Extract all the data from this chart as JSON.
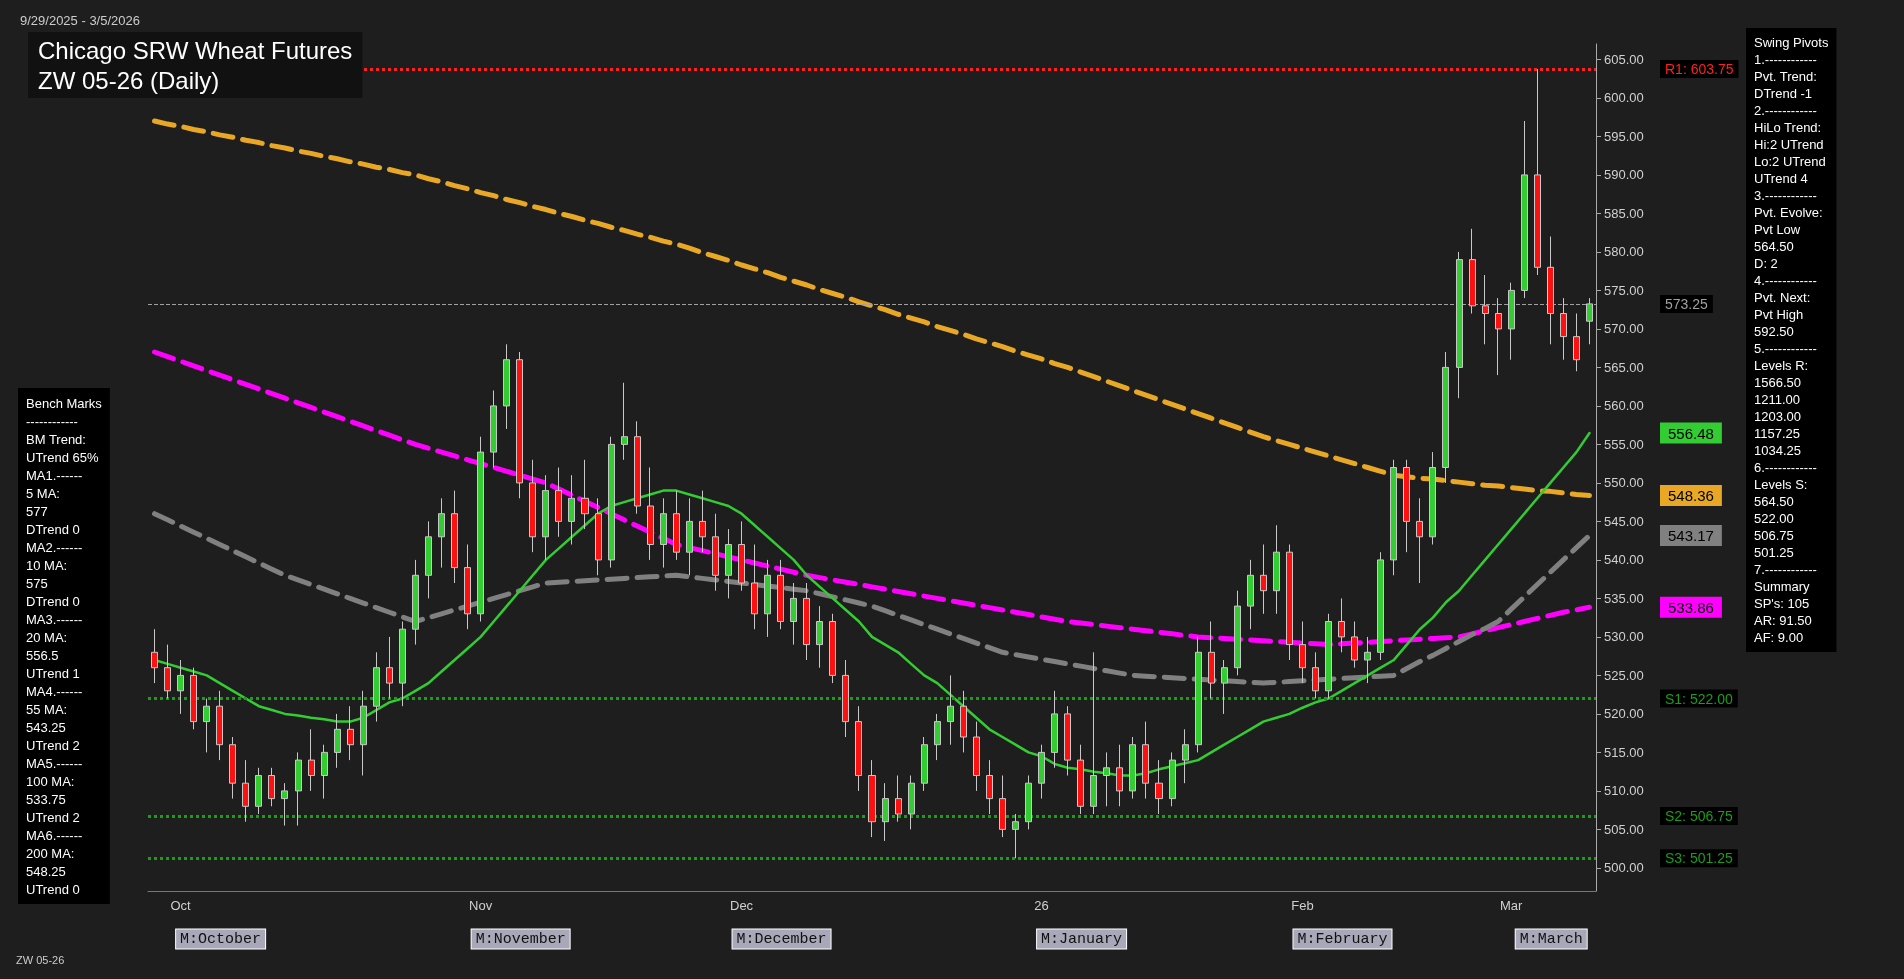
{
  "chart_data": {
    "type": "candlestick",
    "title": "Chicago SRW Wheat Futures",
    "subtitle": "ZW 05-26 (Daily)",
    "categories": [
      null,
      null,
      "Oct",
      null,
      null,
      null,
      null,
      null,
      null,
      null,
      null,
      null,
      null,
      null,
      null,
      null,
      null,
      null,
      null,
      null,
      null,
      null,
      null,
      null,
      null,
      "Nov",
      null,
      null,
      null,
      null,
      null,
      null,
      null,
      null,
      null,
      null,
      null,
      null,
      null,
      null,
      null,
      null,
      null,
      null,
      null,
      "Dec",
      null,
      null,
      null,
      null,
      null,
      null,
      null,
      null,
      null,
      null,
      null,
      null,
      null,
      null,
      null,
      null,
      null,
      null,
      null,
      null,
      null,
      null,
      "26",
      null,
      null,
      null,
      null,
      null,
      null,
      null,
      null,
      null,
      null,
      null,
      null,
      null,
      null,
      null,
      null,
      null,
      null,
      null,
      "Feb",
      null,
      null,
      null,
      null,
      null,
      null,
      null,
      null,
      null,
      null,
      null,
      null,
      null,
      null,
      null,
      "Mar",
      null,
      null,
      null,
      null,
      null,
      null
    ],
    "ohlc": [
      [
        528,
        531,
        524,
        526
      ],
      [
        526,
        529,
        522,
        523
      ],
      [
        523,
        527,
        520,
        525
      ],
      [
        525,
        526,
        518,
        519
      ],
      [
        519,
        522,
        515,
        521
      ],
      [
        521,
        523,
        514,
        516
      ],
      [
        516,
        517,
        509,
        511
      ],
      [
        511,
        514,
        506,
        508
      ],
      [
        508,
        513,
        507,
        512
      ],
      [
        512,
        513,
        508,
        509
      ],
      [
        509,
        511,
        505.5,
        510
      ],
      [
        510,
        515,
        505.5,
        514
      ],
      [
        514,
        518,
        510,
        512
      ],
      [
        512,
        516,
        509,
        515
      ],
      [
        515,
        520,
        513,
        518
      ],
      [
        518,
        521,
        514,
        516
      ],
      [
        516,
        523,
        512,
        521
      ],
      [
        521,
        528,
        519,
        526
      ],
      [
        526,
        530,
        522,
        524
      ],
      [
        524,
        532,
        521,
        531
      ],
      [
        531,
        540,
        529,
        538
      ],
      [
        538,
        545,
        535,
        543
      ],
      [
        543,
        548,
        539,
        546
      ],
      [
        546,
        549,
        537,
        539
      ],
      [
        539,
        542,
        531,
        533
      ],
      [
        533,
        556,
        532,
        554
      ],
      [
        554,
        562,
        552,
        560
      ],
      [
        560,
        568,
        557,
        566
      ],
      [
        566,
        567,
        548,
        550
      ],
      [
        550,
        553,
        541,
        543
      ],
      [
        543,
        551,
        540,
        549
      ],
      [
        549,
        552,
        543,
        545
      ],
      [
        545,
        551,
        542,
        548
      ],
      [
        548,
        553,
        544,
        546
      ],
      [
        546,
        548,
        538,
        540
      ],
      [
        540,
        556,
        539,
        555
      ],
      [
        555,
        563,
        553,
        556
      ],
      [
        556,
        558,
        546,
        547
      ],
      [
        547,
        552,
        540,
        542
      ],
      [
        542,
        548,
        539,
        546
      ],
      [
        546,
        549,
        540,
        541
      ],
      [
        541,
        548,
        538,
        545
      ],
      [
        545,
        549,
        541,
        543
      ],
      [
        543,
        546,
        536,
        538
      ],
      [
        538,
        544,
        535,
        542
      ],
      [
        542,
        545,
        536,
        537
      ],
      [
        537,
        542,
        531,
        533
      ],
      [
        533,
        540,
        530,
        538
      ],
      [
        538,
        540,
        531,
        532
      ],
      [
        532,
        537,
        529,
        535
      ],
      [
        535,
        537,
        527,
        529
      ],
      [
        529,
        534,
        526,
        532
      ],
      [
        532,
        533,
        524,
        525
      ],
      [
        525,
        527,
        517,
        519
      ],
      [
        519,
        521,
        510,
        512
      ],
      [
        512,
        514,
        504,
        506
      ],
      [
        506,
        511,
        503.5,
        509
      ],
      [
        509,
        512,
        506,
        507
      ],
      [
        507,
        512,
        505,
        511
      ],
      [
        511,
        517,
        510,
        516
      ],
      [
        516,
        520,
        514,
        519
      ],
      [
        519,
        525,
        516,
        521
      ],
      [
        521,
        523,
        515,
        517
      ],
      [
        517,
        519,
        510,
        512
      ],
      [
        512,
        514,
        507,
        509
      ],
      [
        509,
        512,
        504,
        505
      ],
      [
        505,
        507,
        501.25,
        506
      ],
      [
        506,
        512,
        505,
        511
      ],
      [
        511,
        516,
        509,
        515
      ],
      [
        515,
        523,
        513,
        520
      ],
      [
        520,
        521,
        512,
        514
      ],
      [
        514,
        516,
        507,
        508
      ],
      [
        508,
        528,
        507,
        512
      ],
      [
        512,
        515,
        508,
        513
      ],
      [
        513,
        516,
        508,
        510
      ],
      [
        510,
        517,
        509,
        516
      ],
      [
        516,
        519,
        509,
        511
      ],
      [
        511,
        514,
        507,
        509
      ],
      [
        509,
        515,
        508,
        514
      ],
      [
        514,
        518,
        511,
        516
      ],
      [
        516,
        530,
        515,
        528
      ],
      [
        528,
        532,
        522,
        524
      ],
      [
        524,
        527,
        520,
        526
      ],
      [
        526,
        536,
        525,
        534
      ],
      [
        534,
        540,
        531,
        538
      ],
      [
        538,
        542,
        533,
        536
      ],
      [
        536,
        544.5,
        533,
        541
      ],
      [
        541,
        542,
        527,
        529
      ],
      [
        529,
        532,
        524,
        526
      ],
      [
        526,
        528,
        522,
        523
      ],
      [
        523,
        533,
        522,
        532
      ],
      [
        532,
        535,
        528,
        530
      ],
      [
        530,
        532,
        526,
        527
      ],
      [
        527,
        530,
        524,
        528
      ],
      [
        528,
        541,
        527,
        540
      ],
      [
        540,
        553,
        538,
        552
      ],
      [
        552,
        553,
        541,
        545
      ],
      [
        545,
        548,
        537,
        543
      ],
      [
        543,
        554,
        542,
        552
      ],
      [
        552,
        567,
        550,
        565
      ],
      [
        565,
        580,
        561,
        579
      ],
      [
        579,
        583,
        572,
        573
      ],
      [
        573,
        577,
        568,
        572
      ],
      [
        572,
        574,
        564,
        570
      ],
      [
        570,
        576,
        566,
        575
      ],
      [
        575,
        597,
        574,
        590
      ],
      [
        590,
        603.75,
        577,
        578
      ],
      [
        578,
        582,
        568,
        572
      ],
      [
        572,
        574,
        566,
        569
      ],
      [
        569,
        572,
        564.5,
        566
      ],
      [
        571,
        574,
        568,
        573.25
      ]
    ],
    "series": [
      {
        "type": "line",
        "color": "#e8a825",
        "line_style": "dashed",
        "values": [
          597,
          596.6,
          596.3,
          595.9,
          595.6,
          595.2,
          594.9,
          594.5,
          594.2,
          593.8,
          593.5,
          593.1,
          592.8,
          592.4,
          592.1,
          591.7,
          591.4,
          591,
          590.7,
          590.3,
          590,
          589.5,
          589.1,
          588.6,
          588.2,
          587.7,
          587.3,
          586.8,
          586.4,
          585.9,
          585.5,
          585,
          584.6,
          584.1,
          583.7,
          583.2,
          582.8,
          582.3,
          581.9,
          581.4,
          581,
          580.5,
          579.9,
          579.4,
          578.9,
          578.3,
          577.8,
          577.3,
          576.7,
          576.2,
          575.7,
          575.1,
          574.6,
          574.1,
          573.5,
          573,
          572.5,
          571.9,
          571.4,
          570.9,
          570.3,
          569.8,
          569.3,
          568.7,
          568.2,
          567.7,
          567.1,
          566.6,
          566.1,
          565.5,
          565,
          564.4,
          563.8,
          563.2,
          562.6,
          562,
          561.4,
          560.8,
          560.2,
          559.6,
          559,
          558.4,
          557.8,
          557.2,
          556.6,
          556,
          555.5,
          555,
          554.5,
          554,
          553.5,
          553,
          552.5,
          552,
          551.5,
          551,
          550.8,
          550.6,
          550.5,
          550.3,
          550.1,
          549.9,
          549.7,
          549.6,
          549.4,
          549.2,
          549,
          548.9,
          548.7,
          548.5,
          548.36
        ]
      },
      {
        "type": "line",
        "color": "#ff00ff",
        "line_style": "dashed",
        "values": [
          567,
          566.4,
          565.8,
          565.2,
          564.6,
          564,
          563.4,
          562.8,
          562.2,
          561.6,
          561,
          560.4,
          559.8,
          559.2,
          558.6,
          558,
          557.4,
          556.8,
          556.2,
          555.6,
          555,
          554.5,
          554,
          553.5,
          553,
          552.5,
          552,
          551.5,
          551,
          550.5,
          550,
          549.2,
          548.4,
          547.6,
          546.8,
          546,
          545.2,
          544.4,
          543.6,
          542.8,
          542,
          541.6,
          541.2,
          540.8,
          540.4,
          540,
          539.6,
          539.2,
          538.8,
          538.4,
          538,
          537.7,
          537.4,
          537.1,
          536.8,
          536.5,
          536.2,
          535.9,
          535.6,
          535.3,
          535,
          534.7,
          534.4,
          534.1,
          533.8,
          533.5,
          533.2,
          532.9,
          532.6,
          532.3,
          532,
          531.8,
          531.6,
          531.4,
          531.2,
          531,
          530.8,
          530.6,
          530.4,
          530.2,
          530,
          529.9,
          529.8,
          529.7,
          529.6,
          529.5,
          529.4,
          529.3,
          529.2,
          529.1,
          529,
          529.1,
          529.2,
          529.3,
          529.4,
          529.5,
          529.6,
          529.7,
          529.8,
          529.9,
          530,
          530.4,
          530.8,
          531.2,
          531.6,
          532,
          532.4,
          532.8,
          533.2,
          533.5,
          533.86
        ]
      },
      {
        "type": "line",
        "color": "#808080",
        "line_style": "dashed",
        "values": [
          546,
          545.2,
          544.4,
          543.6,
          542.8,
          542,
          541.2,
          540.4,
          539.6,
          538.8,
          538,
          537.4,
          536.8,
          536.2,
          535.6,
          535,
          534.4,
          533.8,
          533.2,
          532.6,
          532,
          532.5,
          533,
          533.5,
          534,
          534.5,
          535,
          535.5,
          536,
          536.5,
          537,
          537.1,
          537.2,
          537.3,
          537.4,
          537.5,
          537.6,
          537.7,
          537.8,
          537.9,
          538,
          537.8,
          537.6,
          537.4,
          537.2,
          537,
          536.8,
          536.6,
          536.4,
          536.2,
          536,
          535.6,
          535.2,
          534.8,
          534.4,
          534,
          533.4,
          532.8,
          532.2,
          531.6,
          531,
          530.4,
          529.8,
          529.2,
          528.6,
          528,
          527.7,
          527.4,
          527.1,
          526.8,
          526.5,
          526.2,
          525.9,
          525.6,
          525.3,
          525,
          524.9,
          524.8,
          524.7,
          524.6,
          524.5,
          524.4,
          524.3,
          524.2,
          524.1,
          524,
          524.1,
          524.2,
          524.3,
          524.4,
          524.5,
          524.6,
          524.7,
          524.8,
          524.9,
          525,
          525.9,
          526.8,
          527.6,
          528.5,
          529.4,
          530.3,
          531.1,
          532,
          533.6,
          535.2,
          536.8,
          538.4,
          540,
          541.6,
          543.17
        ]
      },
      {
        "type": "line",
        "color": "#33cc33",
        "line_style": "solid",
        "values": [
          527,
          526.5,
          526,
          525.5,
          525,
          524,
          523,
          522,
          521,
          520.5,
          520,
          519.8,
          519.5,
          519.3,
          519,
          519,
          519.5,
          520.5,
          521.5,
          522,
          523,
          524,
          525.5,
          527,
          528.5,
          530,
          532,
          534,
          536,
          538,
          540,
          541.5,
          543,
          544.5,
          546,
          547,
          547.5,
          548,
          548.5,
          549,
          549,
          548.5,
          548,
          547.5,
          547,
          546,
          544.5,
          543,
          541.5,
          540,
          538,
          536.5,
          535,
          533.5,
          532,
          530,
          529,
          528,
          526.5,
          525,
          524,
          522.5,
          521,
          519.5,
          518,
          517,
          516,
          515,
          514.5,
          513.5,
          513,
          512.8,
          512.5,
          512.3,
          512,
          512,
          512.3,
          512.8,
          513.2,
          513.6,
          514,
          515,
          516,
          517,
          518,
          519,
          519.5,
          520,
          520.8,
          521.5,
          522,
          523,
          524,
          525,
          526,
          527,
          529,
          531,
          532.5,
          534.5,
          536,
          538,
          540,
          542,
          544,
          546,
          548,
          550,
          552,
          554,
          556.48
        ]
      }
    ],
    "ylim": [
      497,
      607
    ],
    "yticks": [
      {
        "value": 500,
        "label": "500.00"
      },
      {
        "value": 505,
        "label": "505.00"
      },
      {
        "value": 510,
        "label": "510.00"
      },
      {
        "value": 515,
        "label": "515.00"
      },
      {
        "value": 520,
        "label": "520.00"
      },
      {
        "value": 525,
        "label": "525.00"
      },
      {
        "value": 530,
        "label": "530.00"
      },
      {
        "value": 535,
        "label": "535.00"
      },
      {
        "value": 540,
        "label": "540.00"
      },
      {
        "value": 545,
        "label": "545.00"
      },
      {
        "value": 550,
        "label": "550.00"
      },
      {
        "value": 555,
        "label": "555.00"
      },
      {
        "value": 560,
        "label": "560.00"
      },
      {
        "value": 565,
        "label": "565.00"
      },
      {
        "value": 570,
        "label": "570.00"
      },
      {
        "value": 575,
        "label": "575.00"
      },
      {
        "value": 580,
        "label": "580.00"
      },
      {
        "value": 585,
        "label": "585.00"
      },
      {
        "value": 590,
        "label": "590.00"
      },
      {
        "value": 595,
        "label": "595.00"
      },
      {
        "value": 600,
        "label": "600.00"
      },
      {
        "value": 605,
        "label": "605.00"
      }
    ],
    "ref_lines": [
      {
        "axis": "y",
        "value": 603.75,
        "label": "R1: 603.75",
        "color": "#ff2020",
        "line_style": "dotted"
      },
      {
        "axis": "y",
        "value": 573.25,
        "label": "573.25",
        "color": "#a0a0a0",
        "line_style": "dashed"
      },
      {
        "axis": "y",
        "value": 522,
        "label": "S1: 522.00",
        "color": "#1a9e1a",
        "line_style": "dotted"
      },
      {
        "axis": "y",
        "value": 506.75,
        "label": "S2: 506.75",
        "color": "#1a9e1a",
        "line_style": "dotted"
      },
      {
        "axis": "y",
        "value": 501.25,
        "label": "S3: 501.25",
        "color": "#1a9e1a",
        "line_style": "dotted"
      }
    ],
    "annotations": [
      "9/29/2025 - 3/5/2026",
      "Bench Marks\n------------\nBM Trend:\nUTrend 65%\nMA1.------\n5 MA:\n577\nDTrend 0\nMA2.------\n10 MA:\n575\nDTrend 0\nMA3.------\n20 MA:\n556.5\nUTrend 1\nMA4.------\n55 MA:\n543.25\nUTrend 2\nMA5.------\n100 MA:\n533.75\nUTrend 2\nMA6.------\n200 MA:\n548.25\nUTrend 0",
      "Swing Pivots\n1.------------\nPvt. Trend:\nDTrend -1\n2.------------\nHiLo Trend:\nHi:2 UTrend\nLo:2 UTrend\nUTrend 4\n3.------------\nPvt. Evolve:\nPvt Low\n564.50\nD: 2\n4.------------\nPvt. Next:\nPvt High\n592.50\n5.------------\nLevels R:\n1566.50\n1211.00\n1203.00\n1157.25\n1034.25\n6.------------\nLevels S:\n564.50\n522.00\n506.75\n501.25\n7.------------\nSummary\nSP's: 105\nAR: 91.50\nAF: 9.00",
      "ZW 05-26",
      "548.36",
      "533.86",
      "543.17",
      "556.48",
      "M:October",
      "M:November",
      "M:December",
      "M:January",
      "M:February",
      "M:March"
    ],
    "grid": false
  }
}
